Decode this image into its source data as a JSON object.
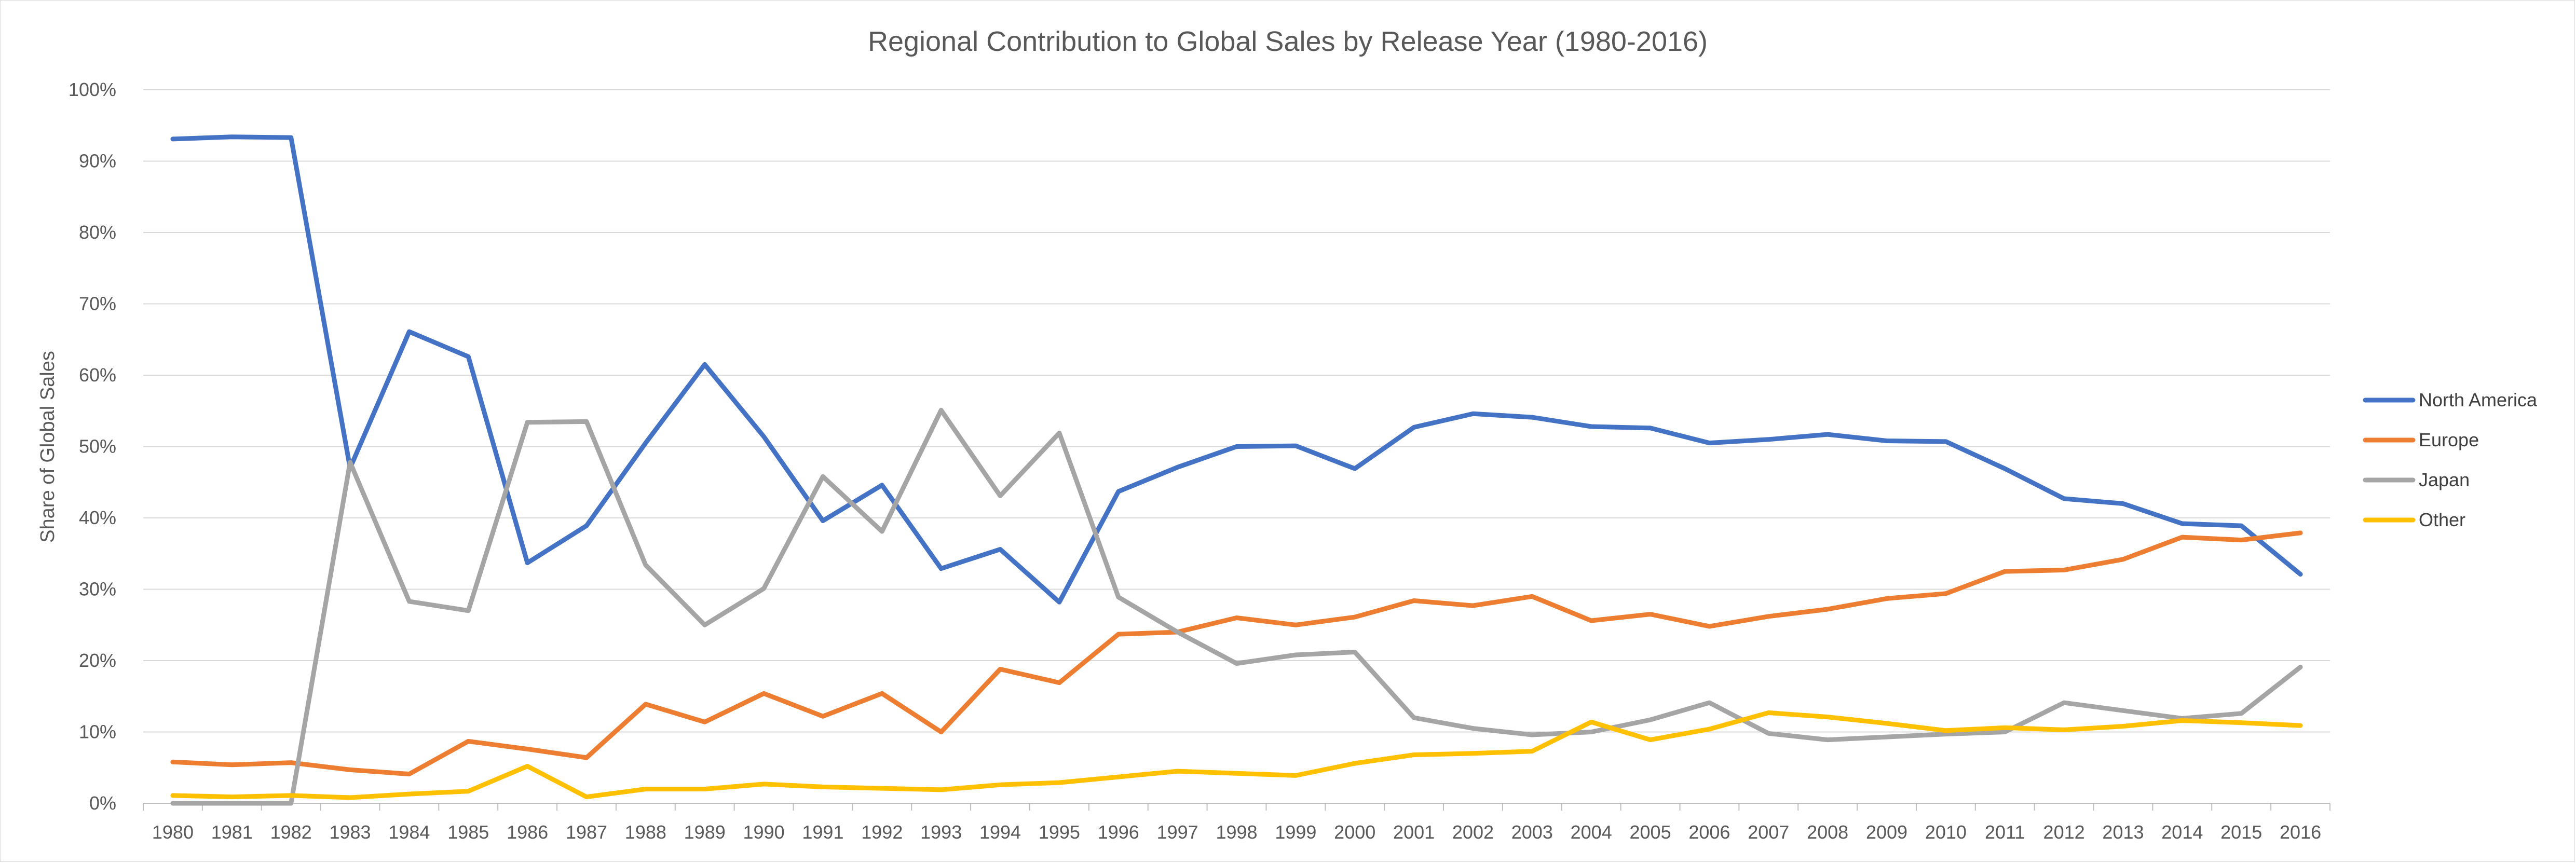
{
  "chart_data": {
    "type": "line",
    "title": "Regional Contribution to Global Sales by Release Year (1980-2016)",
    "xlabel": "",
    "ylabel": "Share of Global Sales",
    "ylim": [
      0,
      100
    ],
    "y_tick_step": 10,
    "y_tick_suffix": "%",
    "grid": true,
    "legend_position": "right",
    "categories": [
      "1980",
      "1981",
      "1982",
      "1983",
      "1984",
      "1985",
      "1986",
      "1987",
      "1988",
      "1989",
      "1990",
      "1991",
      "1992",
      "1993",
      "1994",
      "1995",
      "1996",
      "1997",
      "1998",
      "1999",
      "2000",
      "2001",
      "2002",
      "2003",
      "2004",
      "2005",
      "2006",
      "2007",
      "2008",
      "2009",
      "2010",
      "2011",
      "2012",
      "2013",
      "2014",
      "2015",
      "2016"
    ],
    "series": [
      {
        "name": "North America",
        "color": "#4472C4",
        "values": [
          93.1,
          93.4,
          93.3,
          47.0,
          66.1,
          62.6,
          33.7,
          38.9,
          50.5,
          61.5,
          51.4,
          39.6,
          44.6,
          32.9,
          35.6,
          28.2,
          43.7,
          47.1,
          50.0,
          50.1,
          46.9,
          52.7,
          54.6,
          54.1,
          52.8,
          52.6,
          50.5,
          51.0,
          51.7,
          50.8,
          50.7,
          46.9,
          42.7,
          42.0,
          39.2,
          38.9,
          32.1
        ]
      },
      {
        "name": "Europe",
        "color": "#ED7D31",
        "values": [
          5.8,
          5.4,
          5.7,
          4.7,
          4.1,
          8.7,
          7.6,
          6.4,
          13.9,
          11.4,
          15.4,
          12.2,
          15.4,
          10.0,
          18.8,
          16.9,
          23.7,
          24.0,
          26.0,
          25.0,
          26.1,
          28.4,
          27.7,
          29.0,
          25.6,
          26.5,
          24.8,
          26.2,
          27.2,
          28.7,
          29.4,
          32.5,
          32.7,
          34.2,
          37.3,
          36.9,
          37.9
        ]
      },
      {
        "name": "Japan",
        "color": "#A5A5A5",
        "values": [
          0.0,
          0.0,
          0.0,
          47.8,
          28.3,
          27.0,
          53.4,
          53.5,
          33.4,
          25.0,
          30.1,
          45.8,
          38.1,
          55.1,
          43.1,
          51.9,
          28.9,
          24.0,
          19.6,
          20.8,
          21.2,
          12.0,
          10.5,
          9.6,
          10.0,
          11.7,
          14.1,
          9.8,
          8.9,
          9.3,
          9.7,
          10.0,
          14.1,
          13.0,
          11.9,
          12.6,
          19.1
        ]
      },
      {
        "name": "Other",
        "color": "#FFC000",
        "values": [
          1.1,
          0.9,
          1.1,
          0.8,
          1.3,
          1.7,
          5.2,
          0.9,
          2.0,
          2.0,
          2.7,
          2.3,
          2.1,
          1.9,
          2.6,
          2.9,
          3.7,
          4.5,
          4.2,
          3.9,
          5.6,
          6.8,
          7.0,
          7.3,
          11.4,
          8.9,
          10.4,
          12.7,
          12.1,
          11.2,
          10.2,
          10.6,
          10.3,
          10.8,
          11.6,
          11.3,
          10.9
        ]
      }
    ]
  }
}
